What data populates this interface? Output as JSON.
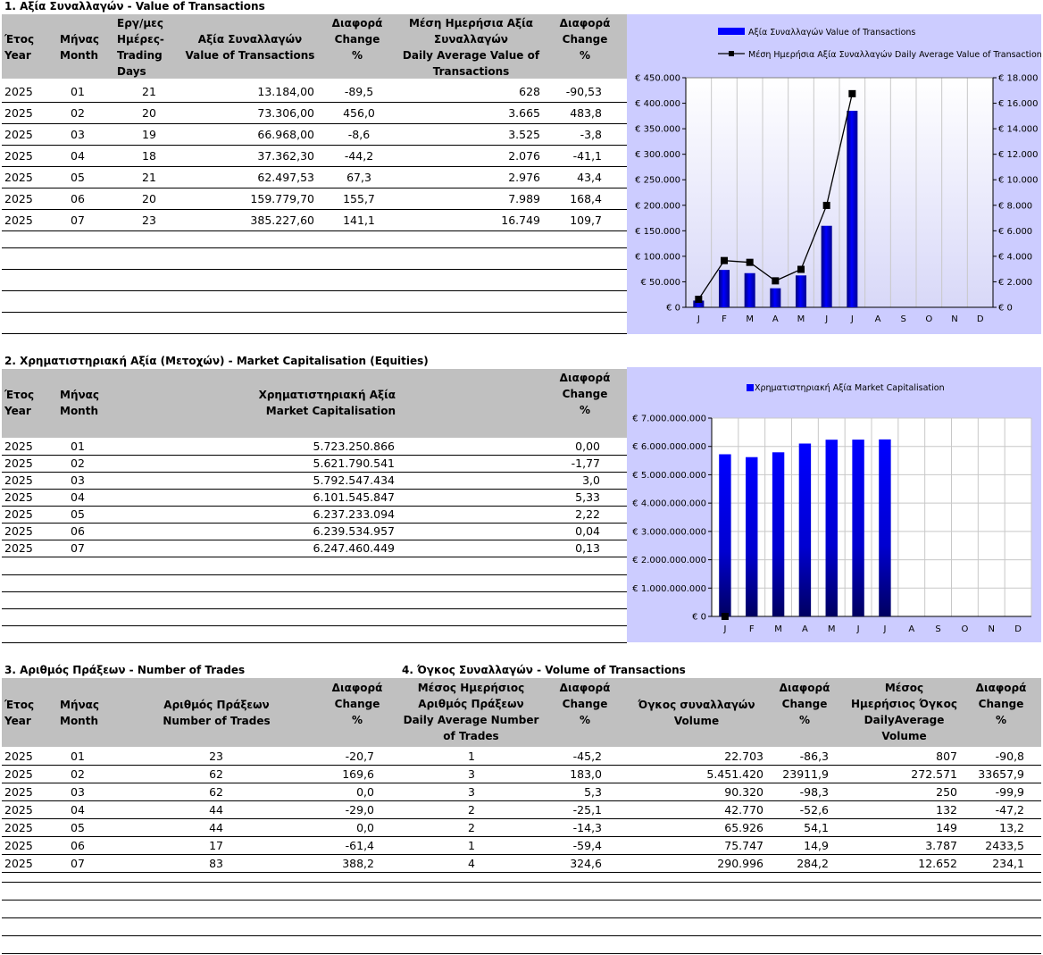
{
  "section1": {
    "title": "1. Αξία Συναλλαγών - Value of Transactions",
    "headers": {
      "year": "Έτος\nYear",
      "month": "Μήνας\nMonth",
      "days": "Εργ/μες\nΗμέρες-\nTrading\nDays",
      "value": "Αξία Συναλλαγών\nValue of Transactions",
      "change1": "Διαφορά\nChange\n%",
      "avg": "Μέση Ημερήσια Αξία\nΣυναλλαγών\nDaily Average Value of\nTransactions",
      "change2": "Διαφορά\nChange\n%"
    },
    "rows": [
      [
        "2025",
        "01",
        "21",
        "13.184,00",
        "-89,5",
        "628",
        "-90,53"
      ],
      [
        "2025",
        "02",
        "20",
        "73.306,00",
        "456,0",
        "3.665",
        "483,8"
      ],
      [
        "2025",
        "03",
        "19",
        "66.968,00",
        "-8,6",
        "3.525",
        "-3,8"
      ],
      [
        "2025",
        "04",
        "18",
        "37.362,30",
        "-44,2",
        "2.076",
        "-41,1"
      ],
      [
        "2025",
        "05",
        "21",
        "62.497,53",
        "67,3",
        "2.976",
        "43,4"
      ],
      [
        "2025",
        "06",
        "20",
        "159.779,70",
        "155,7",
        "7.989",
        "168,4"
      ],
      [
        "2025",
        "07",
        "23",
        "385.227,60",
        "141,1",
        "16.749",
        "109,7"
      ]
    ]
  },
  "section2": {
    "title": "2. Χρηματιστηριακή Αξία (Μετοχών) - Market Capitalisation (Equities)",
    "headers": {
      "year": "Έτος\nYear",
      "month": "Μήνας\nMonth",
      "cap": "Χρηματιστηριακή Αξία\nMarket Capitalisation",
      "change": "Διαφορά\nChange\n%"
    },
    "rows": [
      [
        "2025",
        "01",
        "5.723.250.866",
        "0,00"
      ],
      [
        "2025",
        "02",
        "5.621.790.541",
        "-1,77"
      ],
      [
        "2025",
        "03",
        "5.792.547.434",
        "3,0"
      ],
      [
        "2025",
        "04",
        "6.101.545.847",
        "5,33"
      ],
      [
        "2025",
        "05",
        "6.237.233.094",
        "2,22"
      ],
      [
        "2025",
        "06",
        "6.239.534.957",
        "0,04"
      ],
      [
        "2025",
        "07",
        "6.247.460.449",
        "0,13"
      ]
    ]
  },
  "section3": {
    "title": "3. Αριθμός Πράξεων - Number of Trades",
    "headers": {
      "year": "Έτος\nYear",
      "month": "Μήνας\nMonth",
      "trades": "Αριθμός Πράξεων\nNumber of Trades",
      "change1": "Διαφορά\nChange\n%",
      "avg": "Μέσος Ημερήσιος\nΑριθμός Πράξεων\nDaily Average Number\nof Trades",
      "change2": "Διαφορά\nChange\n%"
    },
    "rows": [
      [
        "2025",
        "01",
        "23",
        "-20,7",
        "1",
        "-45,2"
      ],
      [
        "2025",
        "02",
        "62",
        "169,6",
        "3",
        "183,0"
      ],
      [
        "2025",
        "03",
        "62",
        "0,0",
        "3",
        "5,3"
      ],
      [
        "2025",
        "04",
        "44",
        "-29,0",
        "2",
        "-25,1"
      ],
      [
        "2025",
        "05",
        "44",
        "0,0",
        "2",
        "-14,3"
      ],
      [
        "2025",
        "06",
        "17",
        "-61,4",
        "1",
        "-59,4"
      ],
      [
        "2025",
        "07",
        "83",
        "388,2",
        "4",
        "324,6"
      ]
    ]
  },
  "section4": {
    "title": "4. Όγκος Συναλλαγών - Volume of Transactions",
    "headers": {
      "volume": "Όγκος συναλλαγών\nVolume",
      "change1": "Διαφορά\nChange\n%",
      "avg": "Μέσος\nΗμερήσιος Όγκος\nDailyAverage\nVolume",
      "change2": "Διαφορά\nChange\n%"
    },
    "rows": [
      [
        "22.703",
        "-86,3",
        "807",
        "-90,8"
      ],
      [
        "5.451.420",
        "23911,9",
        "272.571",
        "33657,9"
      ],
      [
        "90.320",
        "-98,3",
        "250",
        "-99,9"
      ],
      [
        "42.770",
        "-52,6",
        "132",
        "-47,2"
      ],
      [
        "65.926",
        "54,1",
        "149",
        "13,2"
      ],
      [
        "75.747",
        "14,9",
        "3.787",
        "2433,5"
      ],
      [
        "290.996",
        "284,2",
        "12.652",
        "234,1"
      ]
    ]
  },
  "chart_data": [
    {
      "type": "bar",
      "categories": [
        "J",
        "F",
        "M",
        "A",
        "M",
        "J",
        "J",
        "A",
        "S",
        "O",
        "N",
        "D"
      ],
      "series": [
        {
          "name": "Αξία Συναλλαγών Value of Transactions",
          "type": "bar",
          "axis": "left",
          "values": [
            13184.0,
            73306.0,
            66968.0,
            37362.3,
            62497.53,
            159779.7,
            385227.6,
            null,
            null,
            null,
            null,
            null
          ]
        },
        {
          "name": "Μέση Ημερήσια Αξία Συναλλαγών Daily Average Value of Transactions",
          "type": "line",
          "axis": "right",
          "values": [
            628,
            3665,
            3525,
            2076,
            2976,
            7989,
            16749,
            null,
            null,
            null,
            null,
            null
          ]
        }
      ],
      "ylim": [
        0,
        450000
      ],
      "y2lim": [
        0,
        18000
      ],
      "yticks": [
        "€ 0",
        "€ 50.000",
        "€ 100.000",
        "€ 150.000",
        "€ 200.000",
        "€ 250.000",
        "€ 300.000",
        "€ 350.000",
        "€ 400.000",
        "€ 450.000"
      ],
      "y2ticks": [
        "€ 0",
        "€ 2.000",
        "€ 4.000",
        "€ 6.000",
        "€ 8.000",
        "€ 10.000",
        "€ 12.000",
        "€ 14.000",
        "€ 16.000",
        "€ 18.000"
      ],
      "legend": "top-right",
      "grid": true,
      "colors": {
        "bar": "#0000ff",
        "line": "#000000",
        "plot_bg": "#e6e6fa",
        "chart_bg": "#ccccff"
      }
    },
    {
      "type": "bar",
      "categories": [
        "J",
        "F",
        "M",
        "A",
        "M",
        "J",
        "J",
        "A",
        "S",
        "O",
        "N",
        "D"
      ],
      "series": [
        {
          "name": "Χρηματιστηριακή Αξία Market Capitalisation",
          "values": [
            5723250866,
            5621790541,
            5792547434,
            6101545847,
            6237233094,
            6239534957,
            6247460449,
            null,
            null,
            null,
            null,
            null
          ]
        }
      ],
      "ylim": [
        0,
        7000000000
      ],
      "yticks": [
        "€ 0",
        "€ 1.000.000.000",
        "€ 2.000.000.000",
        "€ 3.000.000.000",
        "€ 4.000.000.000",
        "€ 5.000.000.000",
        "€ 6.000.000.000",
        "€ 7.000.000.000"
      ],
      "legend": "top",
      "grid": true,
      "colors": {
        "bar": "#0000ff",
        "plot_bg": "#ffffff",
        "chart_bg": "#ccccff"
      }
    }
  ]
}
